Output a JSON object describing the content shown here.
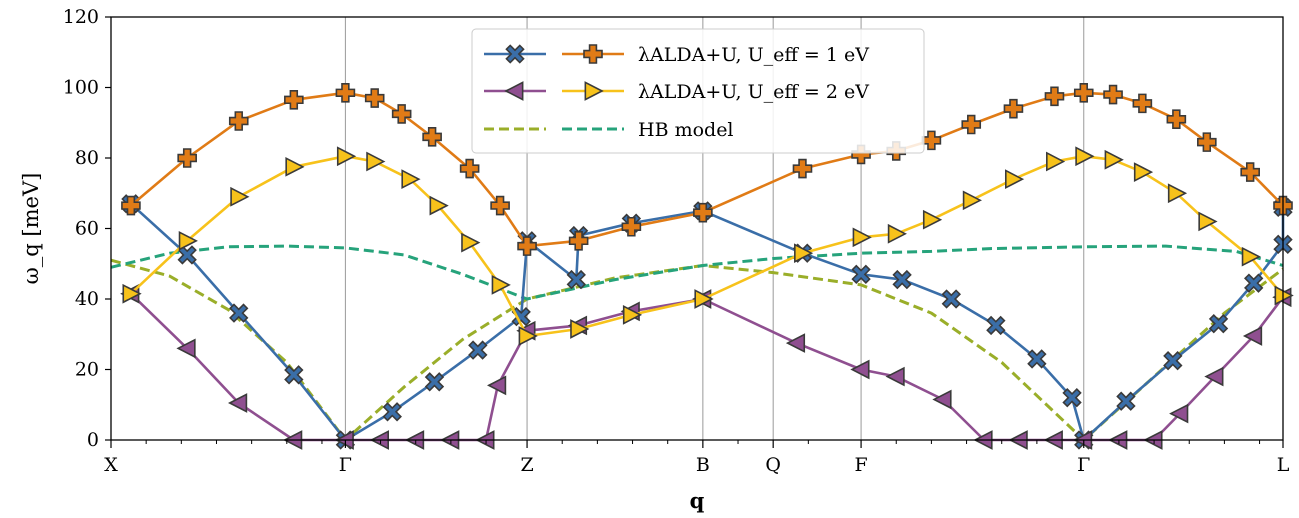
{
  "chart_data": {
    "type": "line",
    "title": "",
    "xlabel": "q",
    "ylabel": "ω_q [meV]",
    "ylim": [
      0,
      120
    ],
    "yticks": [
      0,
      20,
      40,
      60,
      80,
      100,
      120
    ],
    "xlim": [
      0,
      10
    ],
    "high_symmetry_points": [
      {
        "label": "X",
        "x": 0
      },
      {
        "label": "Γ",
        "x": 2
      },
      {
        "label": "Z",
        "x": 3.55
      },
      {
        "label": "B",
        "x": 5.05
      },
      {
        "label": "Q",
        "x": 5.65
      },
      {
        "label": "F",
        "x": 6.4
      },
      {
        "label": "Γ",
        "x": 8.3
      },
      {
        "label": "L",
        "x": 10
      }
    ],
    "minor_ticks": [
      0.3,
      0.6,
      0.9,
      1.2,
      1.5,
      1.8,
      2.3,
      2.6,
      2.9,
      3.2,
      3.85,
      4.15,
      4.45,
      4.75,
      5.35,
      5.95,
      6.7,
      7.0,
      7.3,
      7.6,
      7.9,
      8.6,
      8.9,
      9.2,
      9.5,
      9.8
    ],
    "grid": "vertical lines at high-symmetry points",
    "legend_position": "top-center",
    "legend": [
      {
        "label": "λALDA+U, U_eff = 1 eV",
        "series": [
          "u1_branch_a",
          "u1_branch_b"
        ]
      },
      {
        "label": "λALDA+U, U_eff = 2 eV",
        "series": [
          "u2_branch_a",
          "u2_branch_b"
        ]
      },
      {
        "label": "HB model",
        "series": [
          "hb_a",
          "hb_b"
        ]
      }
    ],
    "series": [
      {
        "id": "u1_branch_a",
        "color": "#3a6ea8",
        "marker": "x",
        "points": [
          [
            0.17,
            67
          ],
          [
            0.65,
            52.5
          ],
          [
            1.09,
            36
          ],
          [
            1.56,
            18.5
          ],
          [
            2.0,
            0
          ],
          [
            2.4,
            8
          ],
          [
            2.76,
            16.5
          ],
          [
            3.13,
            25.5
          ],
          [
            3.5,
            35
          ],
          [
            3.97,
            45.5
          ],
          [
            3.55,
            56.5
          ],
          [
            3.99,
            58
          ],
          [
            4.44,
            61.5
          ],
          [
            5.05,
            65
          ],
          [
            6.4,
            47
          ],
          [
            5.9,
            53
          ],
          [
            6.75,
            45.5
          ],
          [
            7.17,
            40
          ],
          [
            7.55,
            32.5
          ],
          [
            7.9,
            23
          ],
          [
            8.2,
            12
          ],
          [
            8.3,
            0
          ],
          [
            8.66,
            11
          ],
          [
            9.06,
            22.5
          ],
          [
            9.45,
            33
          ],
          [
            9.75,
            44.5
          ],
          [
            10.0,
            55.5
          ],
          [
            10.0,
            66
          ]
        ]
      },
      {
        "id": "u1_branch_b",
        "color": "#e07b16",
        "marker": "plus",
        "points": [
          [
            0.17,
            66.5
          ],
          [
            0.65,
            80
          ],
          [
            1.09,
            90.5
          ],
          [
            1.56,
            96.5
          ],
          [
            2.0,
            98.5
          ],
          [
            2.25,
            97
          ],
          [
            2.48,
            92.5
          ],
          [
            2.74,
            86
          ],
          [
            3.06,
            77
          ],
          [
            3.32,
            66.5
          ],
          [
            3.55,
            55
          ],
          [
            3.99,
            56.5
          ],
          [
            4.44,
            60.5
          ],
          [
            5.05,
            64.5
          ],
          [
            5.9,
            77
          ],
          [
            6.4,
            81
          ],
          [
            6.7,
            82
          ],
          [
            7.0,
            85
          ],
          [
            7.34,
            89.5
          ],
          [
            7.7,
            94
          ],
          [
            8.05,
            97.5
          ],
          [
            8.3,
            98.5
          ],
          [
            8.55,
            98
          ],
          [
            8.8,
            95.5
          ],
          [
            9.09,
            91
          ],
          [
            9.35,
            84.5
          ],
          [
            9.72,
            76
          ],
          [
            10.0,
            66.5
          ]
        ]
      },
      {
        "id": "u2_branch_a",
        "color": "#8f4f90",
        "marker": "triangle-left",
        "points": [
          [
            0.17,
            41.5
          ],
          [
            0.65,
            26
          ],
          [
            1.09,
            10.5
          ],
          [
            1.56,
            0
          ],
          [
            2.0,
            0
          ],
          [
            2.3,
            0
          ],
          [
            2.6,
            0
          ],
          [
            2.9,
            0
          ],
          [
            3.2,
            0
          ],
          [
            3.3,
            15.5
          ],
          [
            3.55,
            31
          ],
          [
            3.99,
            32.5
          ],
          [
            4.44,
            36.5
          ],
          [
            5.05,
            40
          ],
          [
            5.85,
            27.5
          ],
          [
            6.4,
            20
          ],
          [
            6.7,
            18
          ],
          [
            7.1,
            11.5
          ],
          [
            7.45,
            0
          ],
          [
            7.75,
            0
          ],
          [
            8.05,
            0
          ],
          [
            8.3,
            0
          ],
          [
            8.6,
            0
          ],
          [
            8.9,
            0
          ],
          [
            9.12,
            7.5
          ],
          [
            9.42,
            18
          ],
          [
            9.75,
            29.5
          ],
          [
            10.0,
            40.5
          ]
        ]
      },
      {
        "id": "u2_branch_b",
        "color": "#f7c21b",
        "marker": "triangle-right",
        "points": [
          [
            0.17,
            41.5
          ],
          [
            0.65,
            56.5
          ],
          [
            1.09,
            69
          ],
          [
            1.56,
            77.5
          ],
          [
            2.0,
            80.5
          ],
          [
            2.25,
            79
          ],
          [
            2.55,
            74
          ],
          [
            2.79,
            66.5
          ],
          [
            3.06,
            56
          ],
          [
            3.32,
            44
          ],
          [
            3.55,
            29.5
          ],
          [
            3.99,
            31.5
          ],
          [
            4.44,
            35.5
          ],
          [
            5.05,
            40
          ],
          [
            5.9,
            53
          ],
          [
            6.4,
            57.5
          ],
          [
            6.7,
            58.5
          ],
          [
            7.0,
            62.5
          ],
          [
            7.34,
            68
          ],
          [
            7.7,
            74
          ],
          [
            8.05,
            79
          ],
          [
            8.3,
            80.5
          ],
          [
            8.55,
            79.5
          ],
          [
            8.8,
            76
          ],
          [
            9.09,
            70
          ],
          [
            9.35,
            62
          ],
          [
            9.72,
            52
          ],
          [
            10.0,
            41
          ]
        ]
      },
      {
        "id": "hb_a",
        "color": "#9aae29",
        "dash": true,
        "points": [
          [
            0.0,
            51
          ],
          [
            0.5,
            46.5
          ],
          [
            1.0,
            37
          ],
          [
            1.5,
            22
          ],
          [
            2.0,
            0
          ],
          [
            2.5,
            15
          ],
          [
            3.0,
            28.5
          ],
          [
            3.55,
            40
          ],
          [
            4.3,
            46
          ],
          [
            5.05,
            49.5
          ],
          [
            5.65,
            47.5
          ],
          [
            6.4,
            44
          ],
          [
            7.0,
            36
          ],
          [
            7.6,
            22
          ],
          [
            8.3,
            0
          ],
          [
            8.9,
            18
          ],
          [
            9.5,
            36
          ],
          [
            10.0,
            48.5
          ]
        ]
      },
      {
        "id": "hb_b",
        "color": "#26a37b",
        "dash": true,
        "points": [
          [
            0.0,
            49
          ],
          [
            0.5,
            53
          ],
          [
            1.0,
            54.8
          ],
          [
            1.5,
            55
          ],
          [
            2.0,
            54.5
          ],
          [
            2.5,
            52.5
          ],
          [
            3.0,
            47
          ],
          [
            3.55,
            40
          ],
          [
            4.3,
            45.5
          ],
          [
            5.05,
            49.5
          ],
          [
            5.65,
            51.5
          ],
          [
            6.4,
            53
          ],
          [
            7.0,
            53.5
          ],
          [
            7.5,
            54.3
          ],
          [
            8.3,
            54.8
          ],
          [
            9.0,
            55
          ],
          [
            9.6,
            53.5
          ],
          [
            10.0,
            49.5
          ]
        ]
      }
    ]
  }
}
